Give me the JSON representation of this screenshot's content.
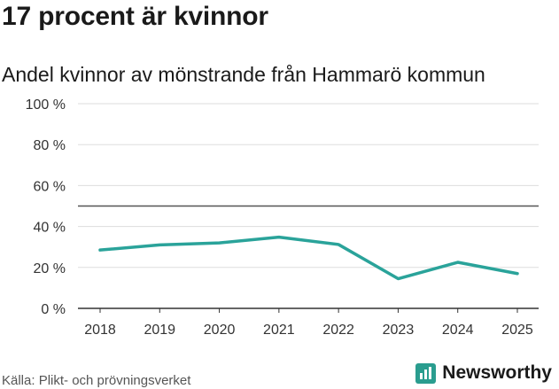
{
  "header": {
    "title": "17 procent är kvinnor",
    "subtitle": "Andel kvinnor av mönstrande från Hammarö kommun"
  },
  "footer": {
    "source": "Källa: Plikt- och prövningsverket",
    "brand_name": "Newsworthy"
  },
  "colors": {
    "line": "#2aa39a",
    "grid": "#dddddd",
    "reference": "#555555",
    "brand": "#2a9d8f"
  },
  "chart_data": {
    "type": "line",
    "title": "17 procent är kvinnor",
    "subtitle": "Andel kvinnor av mönstrande från Hammarö kommun",
    "categories": [
      "2018",
      "2019",
      "2020",
      "2021",
      "2022",
      "2023",
      "2024",
      "2025"
    ],
    "series": [
      {
        "name": "Andel kvinnor",
        "values": [
          28.5,
          31,
          32,
          34.8,
          31.2,
          14.5,
          22.5,
          17
        ]
      }
    ],
    "reference_line": 50,
    "ylim": [
      0,
      100
    ],
    "yticks": [
      0,
      20,
      40,
      60,
      80,
      100
    ],
    "ytick_labels": [
      "0 %",
      "20 %",
      "40 %",
      "60 %",
      "80 %",
      "100 %"
    ],
    "xlabel": "",
    "ylabel": "",
    "grid": true,
    "legend": "none"
  }
}
